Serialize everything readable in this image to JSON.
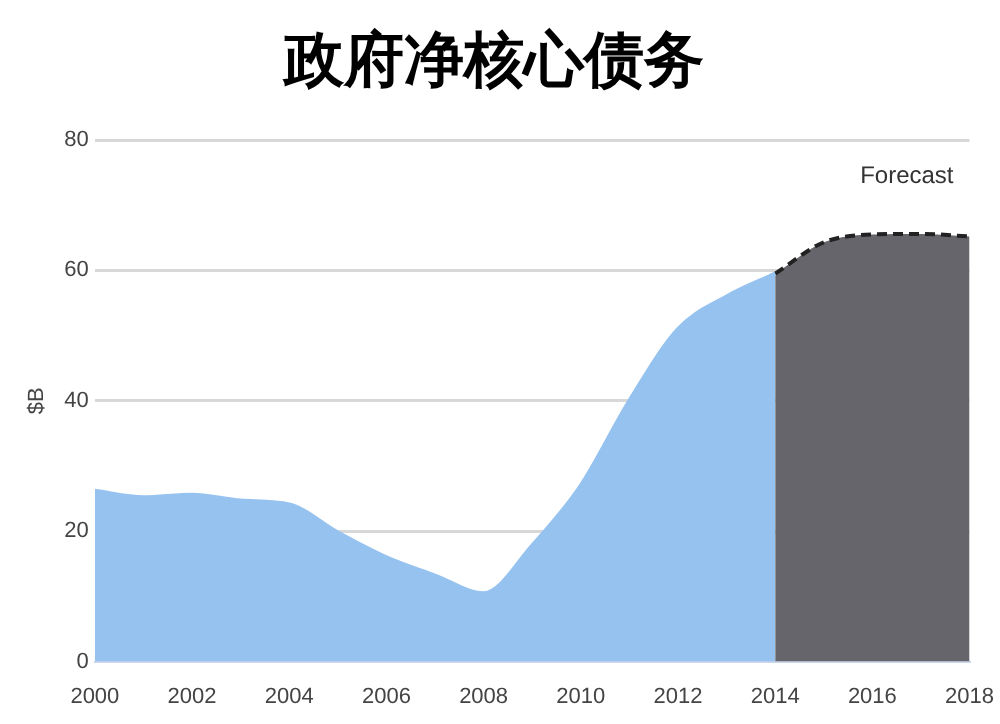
{
  "chart_data": {
    "type": "area",
    "title": "政府净核心债务",
    "ylabel": "$B",
    "xlim": [
      2000,
      2018
    ],
    "xticks": [
      2000,
      2002,
      2004,
      2006,
      2008,
      2010,
      2012,
      2014,
      2016,
      2018
    ],
    "ylim": [
      0,
      80
    ],
    "yticks": [
      0,
      20,
      40,
      60,
      80
    ],
    "grid": "y",
    "legend": false,
    "series": [
      {
        "color": "#95c2ef",
        "x": [
          2000,
          2001,
          2002,
          2003,
          2004,
          2005,
          2006,
          2007,
          2008,
          2009,
          2010,
          2011,
          2012,
          2013,
          2014
        ],
        "values": [
          26.2,
          25.2,
          25.6,
          24.7,
          24.1,
          19.8,
          16,
          13.2,
          10.5,
          17.8,
          27,
          40,
          51,
          56,
          59.5
        ],
        "line_style": "solid"
      },
      {
        "color": "#66656b",
        "x": [
          2014,
          2015,
          2016,
          2017,
          2018
        ],
        "values": [
          59.5,
          64.3,
          65.5,
          65.6,
          65.2
        ],
        "line_style": "dashed"
      }
    ],
    "annotations": [
      "Forecast"
    ]
  }
}
